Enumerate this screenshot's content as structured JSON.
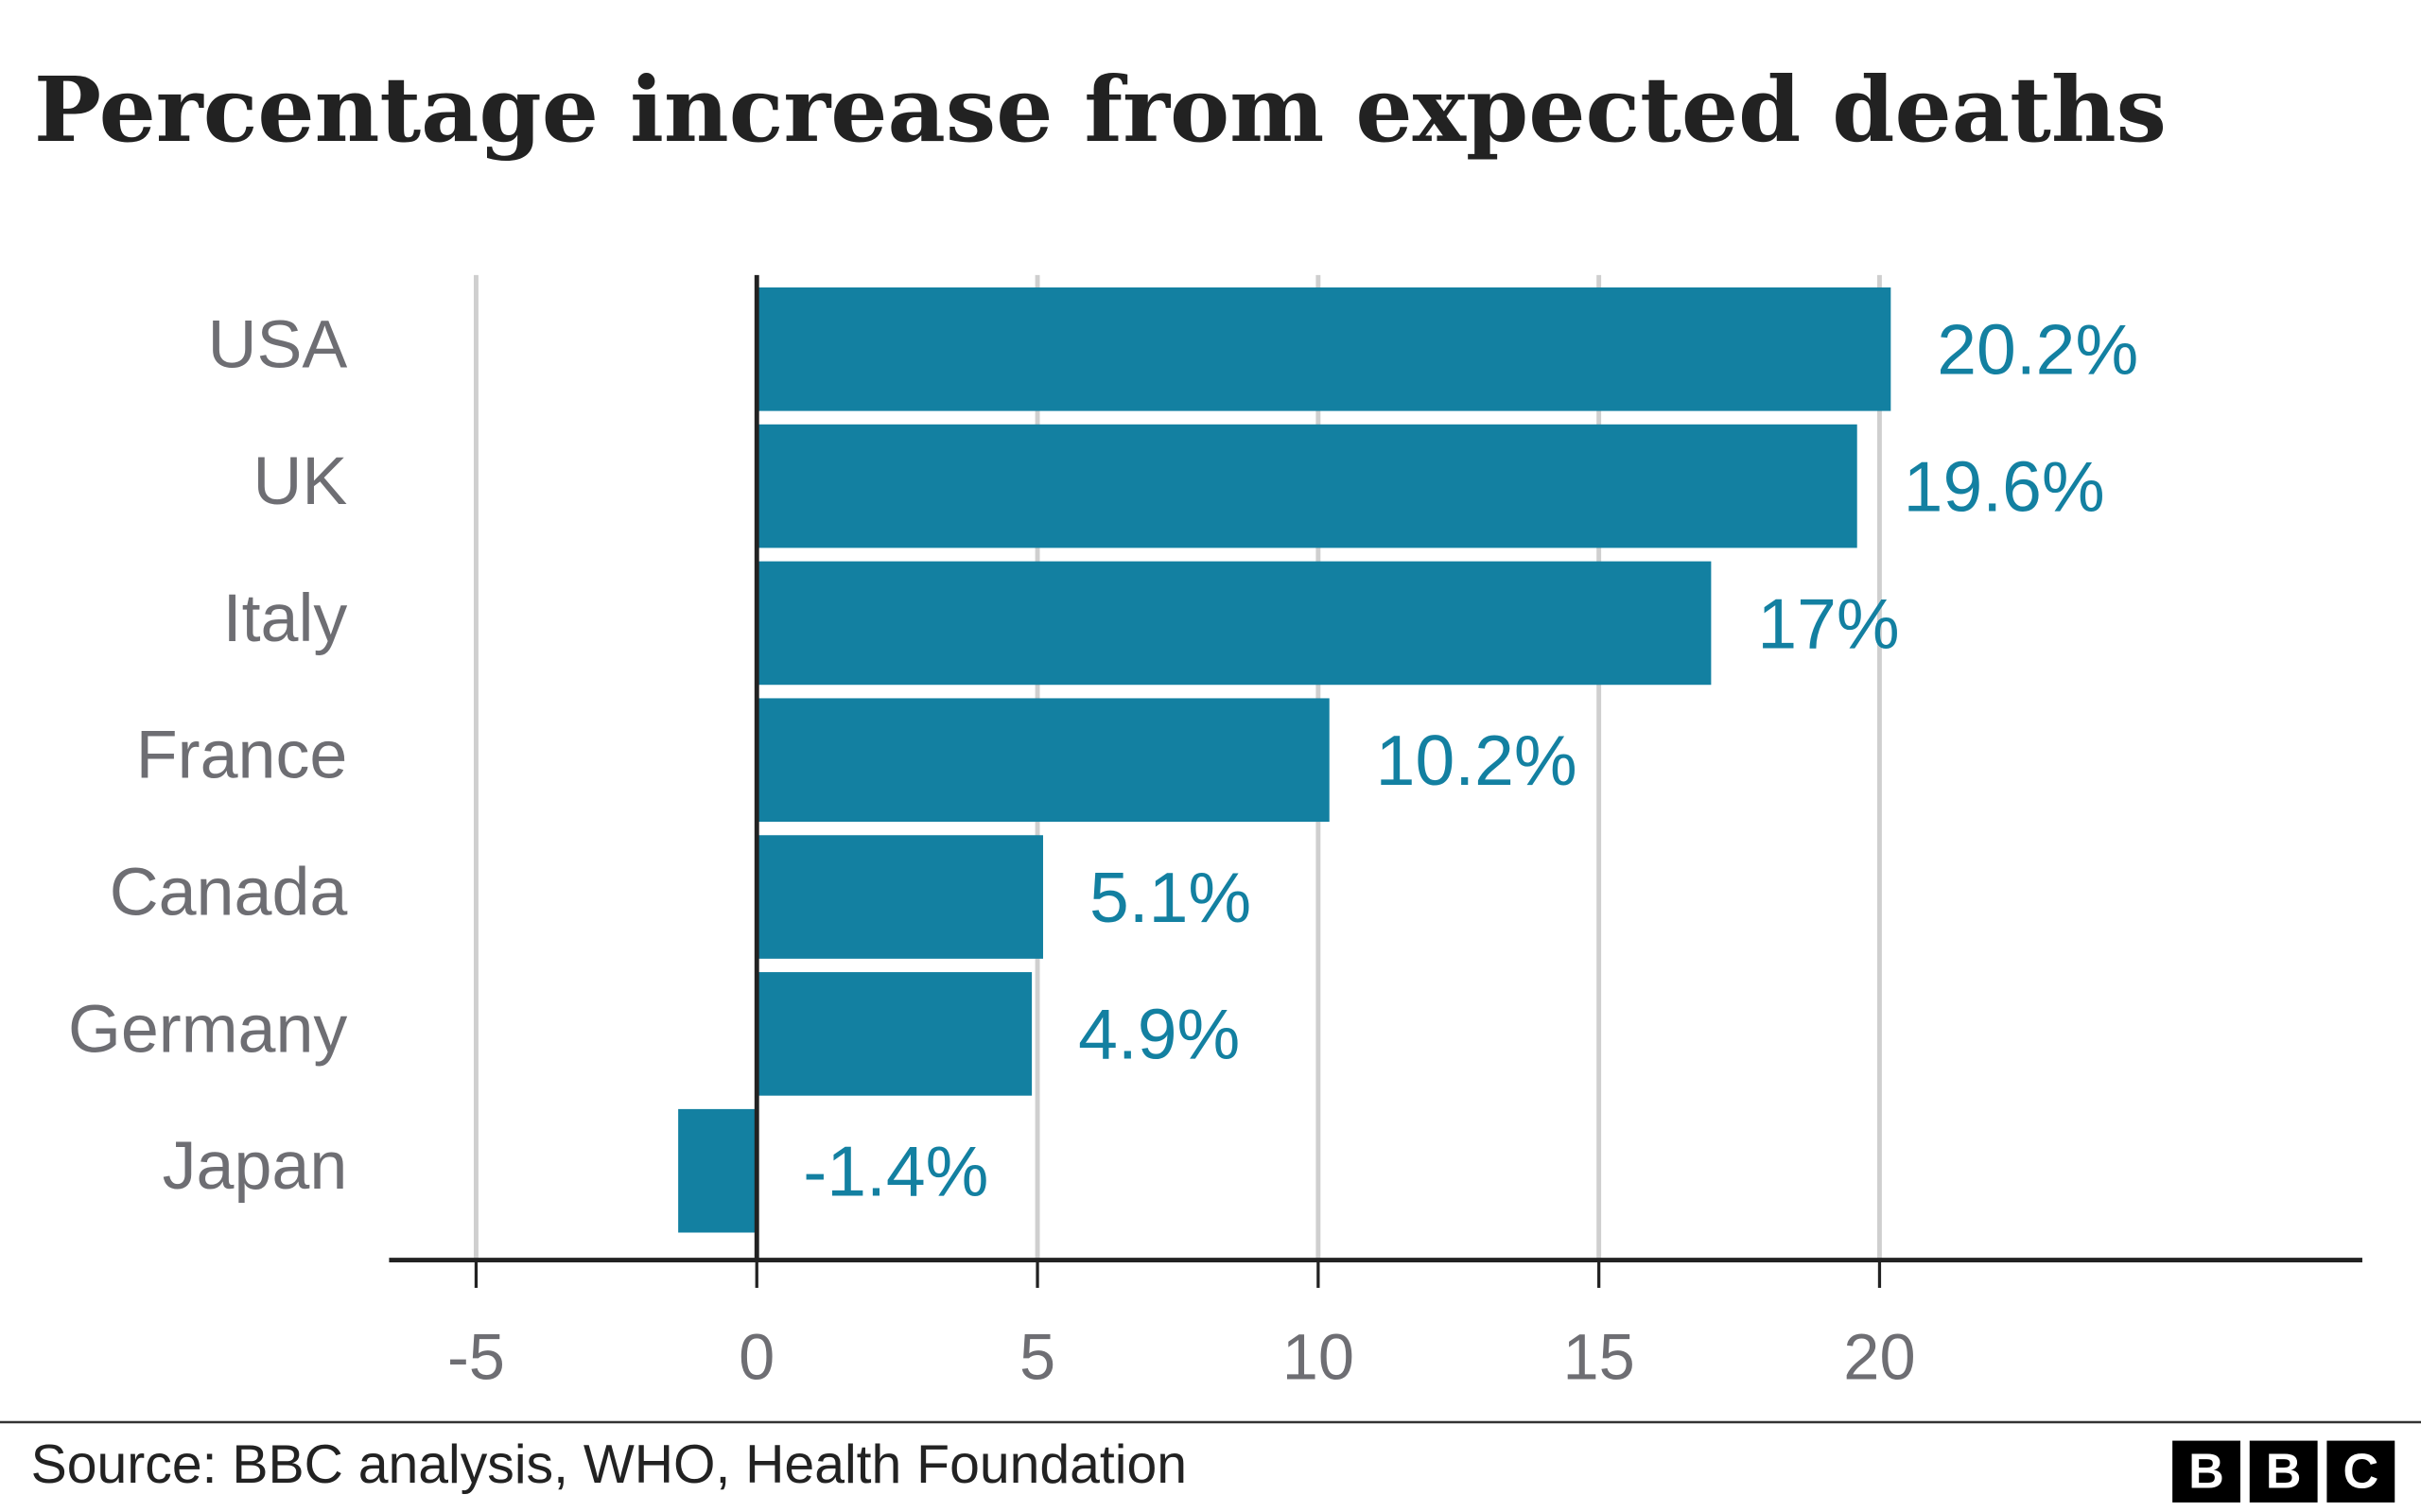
{
  "chart_data": {
    "type": "bar",
    "orientation": "horizontal",
    "title": "Percentage increase from expected deaths",
    "categories": [
      "USA",
      "UK",
      "Italy",
      "France",
      "Canada",
      "Germany",
      "Japan"
    ],
    "values": [
      20.2,
      19.6,
      17,
      10.2,
      5.1,
      4.9,
      -1.4
    ],
    "value_labels": [
      "20.2%",
      "19.6%",
      "17%",
      "10.2%",
      "5.1%",
      "4.9%",
      "-1.4%"
    ],
    "color": "#1380a1",
    "xlim": [
      -6.55,
      28.6
    ],
    "xticks": [
      -5,
      0,
      5,
      10,
      15,
      20
    ],
    "grid": true,
    "source": "Source: BBC analysis, WHO, Health Foundation"
  },
  "logo": [
    "B",
    "B",
    "C"
  ]
}
